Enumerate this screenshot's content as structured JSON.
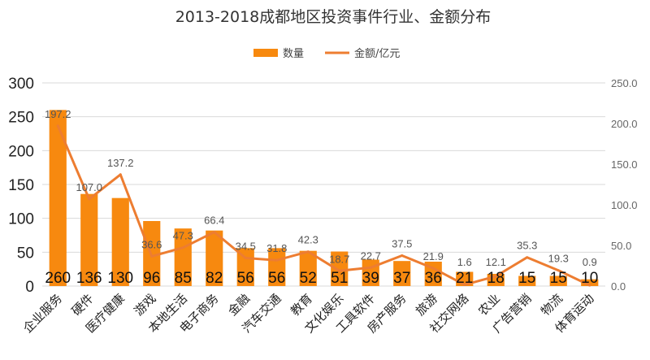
{
  "chart_data": {
    "type": "bar+line",
    "title": "2013-2018成都地区投资事件行业、金额分布",
    "legend_position": "top",
    "grid": true,
    "categories": [
      "企业服务",
      "硬件",
      "医疗健康",
      "游戏",
      "本地生活",
      "电子商务",
      "金融",
      "汽车交通",
      "教育",
      "文化娱乐",
      "工具软件",
      "房产服务",
      "旅游",
      "社交网络",
      "农业",
      "广告营销",
      "物流",
      "体育运动"
    ],
    "series": [
      {
        "name": "数量",
        "type": "bar",
        "axis": "left",
        "color": "#f7890f",
        "values": [
          260,
          136,
          130,
          96,
          85,
          82,
          56,
          56,
          52,
          51,
          39,
          37,
          36,
          21,
          18,
          15,
          15,
          10
        ]
      },
      {
        "name": "金额/亿元",
        "type": "line",
        "axis": "right",
        "color": "#ed7d31",
        "values": [
          197.2,
          107.0,
          137.2,
          36.6,
          47.3,
          66.4,
          34.5,
          31.8,
          42.3,
          18.7,
          22.7,
          37.5,
          21.9,
          1.6,
          12.1,
          35.3,
          19.3,
          0.9
        ]
      }
    ],
    "bar_labels": [
      "260",
      "136",
      "130",
      "96",
      "85",
      "82",
      "56",
      "56",
      "52",
      "51",
      "39",
      "37",
      "36",
      "21",
      "18",
      "15",
      "15",
      "10"
    ],
    "line_labels": [
      "197.2",
      "107.0",
      "137.2",
      "36.6",
      "47.3",
      "66.4",
      "34.5",
      "31.8",
      "42.3",
      "18.7",
      "22.7",
      "37.5",
      "21.9",
      "1.6",
      "12.1",
      "35.3",
      "19.3",
      "0.9"
    ],
    "y_left": {
      "range": [
        0,
        300
      ],
      "ticks": [
        "0",
        "50",
        "100",
        "150",
        "200",
        "250",
        "300"
      ]
    },
    "y_right": {
      "range": [
        0,
        250
      ],
      "ticks": [
        "0.0",
        "50.0",
        "100.0",
        "150.0",
        "200.0",
        "250.0"
      ]
    }
  }
}
